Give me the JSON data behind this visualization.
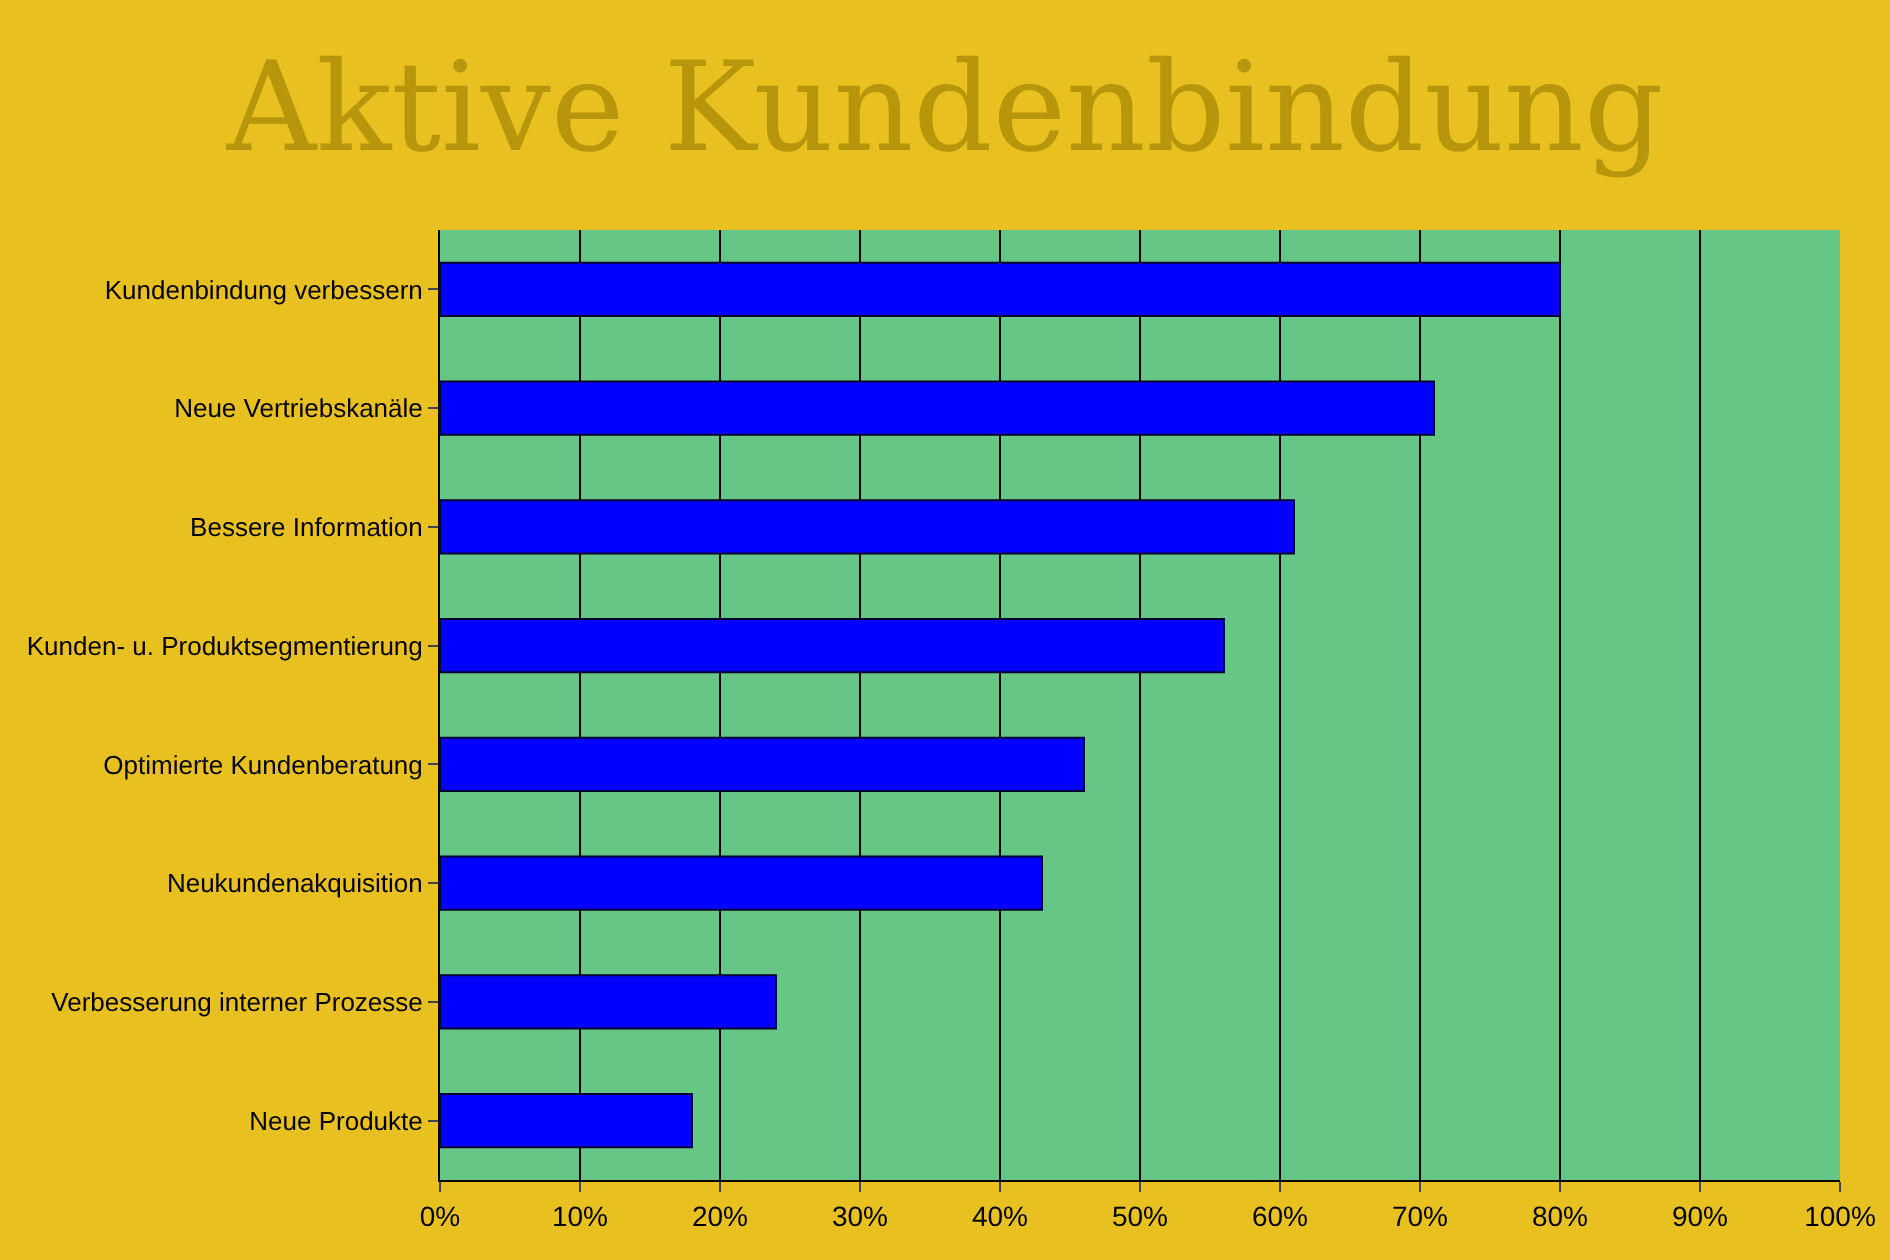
{
  "chart_data": {
    "type": "bar",
    "title": "Aktive Kundenbindung",
    "orientation": "horizontal",
    "categories": [
      "Kundenbindung verbessern",
      "Neue Vertriebskanäle",
      "Bessere Information",
      "Kunden- u. Produktsegmentierung",
      "Optimierte Kundenberatung",
      "Neukundenakquisition",
      "Verbesserung interner Prozesse",
      "Neue Produkte"
    ],
    "values": [
      80,
      71,
      61,
      56,
      46,
      43,
      24,
      18
    ],
    "color": "#0000ff",
    "xlim": [
      0,
      100
    ],
    "xticks": [
      {
        "value": 0,
        "label": "0%"
      },
      {
        "value": 10,
        "label": "10%"
      },
      {
        "value": 20,
        "label": "20%"
      },
      {
        "value": 30,
        "label": "30%"
      },
      {
        "value": 40,
        "label": "40%"
      },
      {
        "value": 50,
        "label": "50%"
      },
      {
        "value": 60,
        "label": "60%"
      },
      {
        "value": 70,
        "label": "70%"
      },
      {
        "value": 80,
        "label": "80%"
      },
      {
        "value": 90,
        "label": "90%"
      },
      {
        "value": 100,
        "label": "100%"
      }
    ],
    "grid": "x"
  }
}
